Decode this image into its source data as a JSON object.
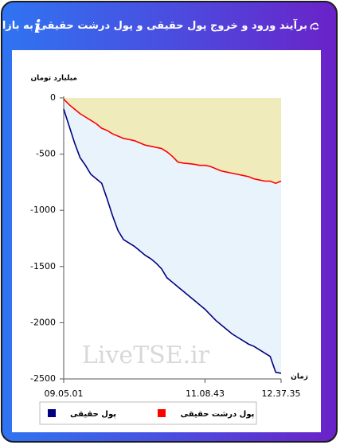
{
  "header": {
    "title": "برآیند ورود و خروج پول حقیقی و پول درشت حقیقی به بازار"
  },
  "chart_data": {
    "type": "area",
    "ylabel": "میلیارد تومان",
    "xlabel": "زمان",
    "watermark": "LiveTSE.ir",
    "ylim": [
      -2500,
      0
    ],
    "yticks": [
      0,
      -500,
      -1000,
      -1500,
      -2000,
      -2500
    ],
    "xlim": [
      0,
      40
    ],
    "xticks": [
      {
        "value": 0,
        "label": "09.05.01"
      },
      {
        "value": 26,
        "label": "11.08.43"
      },
      {
        "value": 40,
        "label": "12.37.35"
      }
    ],
    "series": [
      {
        "name": "پول حقیقی",
        "color": "#000080",
        "fill": "#e8f3fb",
        "values": [
          -100,
          -250,
          -400,
          -530,
          -600,
          -680,
          -720,
          -760,
          -900,
          -1050,
          -1180,
          -1260,
          -1290,
          -1320,
          -1360,
          -1400,
          -1430,
          -1470,
          -1520,
          -1600,
          -1640,
          -1680,
          -1720,
          -1760,
          -1800,
          -1840,
          -1880,
          -1930,
          -1980,
          -2020,
          -2060,
          -2100,
          -2130,
          -2160,
          -2190,
          -2210,
          -2240,
          -2270,
          -2300,
          -2440,
          -2450
        ]
      },
      {
        "name": "پول درشت حقیقی",
        "color": "#ff0000",
        "fill": "#efebbb",
        "values": [
          -10,
          -60,
          -100,
          -140,
          -170,
          -200,
          -230,
          -270,
          -290,
          -320,
          -340,
          -360,
          -370,
          -380,
          -400,
          -420,
          -430,
          -440,
          -450,
          -480,
          -520,
          -570,
          -580,
          -585,
          -590,
          -600,
          -600,
          -610,
          -630,
          -650,
          -660,
          -670,
          -680,
          -690,
          -700,
          -720,
          -730,
          -740,
          -740,
          -760,
          -740
        ]
      }
    ]
  }
}
